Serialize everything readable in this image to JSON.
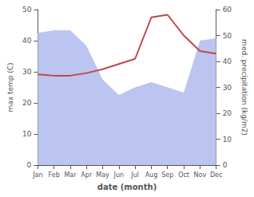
{
  "chart_data": {
    "type": "line",
    "xlabel": "date (month)",
    "ylabel": "max temp (C)",
    "y2label": "med. precipitation (kg/m2)",
    "categories": [
      "Jan",
      "Feb",
      "Mar",
      "Apr",
      "May",
      "Jun",
      "Jul",
      "Aug",
      "Sep",
      "Oct",
      "Nov",
      "Dec"
    ],
    "series": [
      {
        "type": "area",
        "color": "#bbc5ef",
        "axis": "y2",
        "values": [
          51,
          52,
          52,
          46,
          33,
          27,
          30,
          32,
          30,
          28,
          48,
          49
        ]
      },
      {
        "type": "line",
        "color": "#c0474a",
        "axis": "y2",
        "values": [
          35,
          34.5,
          34.5,
          35.5,
          37,
          39,
          41,
          57,
          58,
          50,
          44,
          43
        ]
      }
    ],
    "ylim": [
      0,
      50
    ],
    "yticks": [
      0,
      10,
      20,
      30,
      40,
      50
    ],
    "y2lim": [
      0,
      60
    ],
    "y2ticks": [
      0,
      10,
      20,
      30,
      40,
      50,
      60
    ],
    "grid": false
  }
}
